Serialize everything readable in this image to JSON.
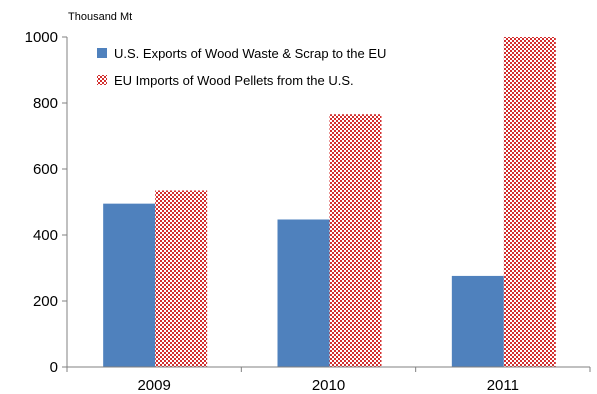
{
  "chart_data": {
    "type": "bar",
    "unit_label": "Thousand Mt",
    "categories": [
      "2009",
      "2010",
      "2011"
    ],
    "series": [
      {
        "name": "U.S. Exports of Wood Waste & Scrap to the EU",
        "values": [
          495,
          447,
          276
        ],
        "color": "#4f81bd",
        "fill_style": "solid"
      },
      {
        "name": "EU Imports of Wood Pellets from the U.S.",
        "values": [
          535,
          766,
          1000
        ],
        "color": "#d32f2f",
        "fill_style": "crosshatch"
      }
    ],
    "ylim": [
      0,
      1000
    ],
    "yticks": [
      0,
      200,
      400,
      600,
      800,
      1000
    ],
    "ytick_labels": [
      "0",
      "200",
      "400",
      "600",
      "800",
      "1000"
    ],
    "grid": false,
    "legend_position": "top-left"
  }
}
